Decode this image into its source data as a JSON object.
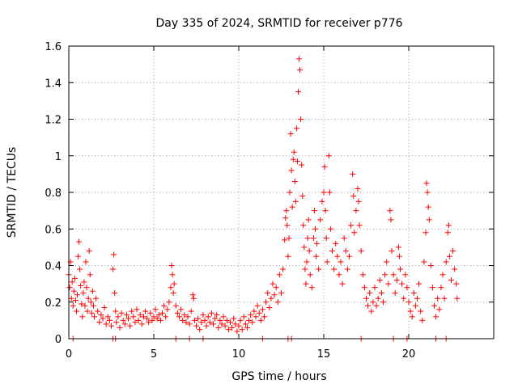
{
  "chart_data": {
    "type": "scatter",
    "title": "Day 335 of 2024, SRMTID for receiver p776",
    "xlabel": "GPS time / hours",
    "ylabel": "SRMTID / TECUs",
    "xlim": [
      0,
      25
    ],
    "ylim": [
      0,
      1.6
    ],
    "x_ticks": [
      0,
      5,
      10,
      15,
      20
    ],
    "x_tick_labels": [
      "0",
      "5",
      "10",
      "15",
      "20"
    ],
    "y_ticks": [
      0,
      0.2,
      0.4,
      0.6,
      0.8,
      1.0,
      1.2,
      1.4,
      1.6
    ],
    "y_tick_labels": [
      "0",
      "0.2",
      "0.4",
      "0.6",
      "0.8",
      "1",
      "1.2",
      "1.4",
      "1.6"
    ],
    "grid": true,
    "marker": "+",
    "color": "#ff0000",
    "series": [
      {
        "name": "SRMTID",
        "points": [
          [
            0.0,
            0.35
          ],
          [
            0.05,
            0.28
          ],
          [
            0.1,
            0.42
          ],
          [
            0.15,
            0.22
          ],
          [
            0.2,
            0.31
          ],
          [
            0.25,
            0.18
          ],
          [
            0.3,
            0.26
          ],
          [
            0.35,
            0.33
          ],
          [
            0.4,
            0.21
          ],
          [
            0.45,
            0.15
          ],
          [
            0.5,
            0.24
          ],
          [
            0.55,
            0.45
          ],
          [
            0.6,
            0.53
          ],
          [
            0.65,
            0.38
          ],
          [
            0.7,
            0.29
          ],
          [
            0.75,
            0.19
          ],
          [
            0.8,
            0.12
          ],
          [
            0.85,
            0.25
          ],
          [
            0.9,
            0.31
          ],
          [
            0.95,
            0.18
          ],
          [
            1.0,
            0.42
          ],
          [
            1.05,
            0.28
          ],
          [
            1.1,
            0.15
          ],
          [
            1.15,
            0.22
          ],
          [
            1.2,
            0.48
          ],
          [
            1.25,
            0.35
          ],
          [
            1.3,
            0.2
          ],
          [
            1.35,
            0.14
          ],
          [
            1.4,
            0.26
          ],
          [
            1.45,
            0.18
          ],
          [
            1.5,
            0.12
          ],
          [
            1.6,
            0.22
          ],
          [
            1.7,
            0.15
          ],
          [
            1.8,
            0.09
          ],
          [
            1.9,
            0.13
          ],
          [
            2.0,
            0.11
          ],
          [
            2.1,
            0.17
          ],
          [
            2.2,
            0.08
          ],
          [
            2.3,
            0.12
          ],
          [
            2.4,
            0.1
          ],
          [
            2.5,
            0.07
          ],
          [
            2.6,
            0.38
          ],
          [
            2.65,
            0.46
          ],
          [
            2.7,
            0.25
          ],
          [
            2.75,
            0.15
          ],
          [
            2.8,
            0.09
          ],
          [
            2.9,
            0.12
          ],
          [
            3.0,
            0.06
          ],
          [
            3.1,
            0.14
          ],
          [
            3.2,
            0.1
          ],
          [
            3.3,
            0.08
          ],
          [
            3.4,
            0.13
          ],
          [
            3.5,
            0.11
          ],
          [
            3.6,
            0.07
          ],
          [
            3.7,
            0.15
          ],
          [
            3.8,
            0.12
          ],
          [
            3.9,
            0.09
          ],
          [
            4.0,
            0.16
          ],
          [
            4.1,
            0.1
          ],
          [
            4.2,
            0.13
          ],
          [
            4.3,
            0.08
          ],
          [
            4.4,
            0.12
          ],
          [
            4.5,
            0.15
          ],
          [
            4.6,
            0.11
          ],
          [
            4.7,
            0.09
          ],
          [
            4.8,
            0.14
          ],
          [
            4.9,
            0.1
          ],
          [
            5.0,
            0.12
          ],
          [
            5.1,
            0.16
          ],
          [
            5.2,
            0.11
          ],
          [
            5.3,
            0.13
          ],
          [
            5.4,
            0.1
          ],
          [
            5.5,
            0.14
          ],
          [
            5.6,
            0.18
          ],
          [
            5.7,
            0.12
          ],
          [
            5.8,
            0.16
          ],
          [
            5.9,
            0.2
          ],
          [
            6.0,
            0.28
          ],
          [
            6.05,
            0.4
          ],
          [
            6.1,
            0.35
          ],
          [
            6.15,
            0.25
          ],
          [
            6.2,
            0.3
          ],
          [
            6.3,
            0.18
          ],
          [
            6.4,
            0.14
          ],
          [
            6.5,
            0.12
          ],
          [
            6.6,
            0.16
          ],
          [
            6.7,
            0.1
          ],
          [
            6.8,
            0.13
          ],
          [
            6.9,
            0.09
          ],
          [
            7.0,
            0.12
          ],
          [
            7.1,
            0.08
          ],
          [
            7.2,
            0.15
          ],
          [
            7.3,
            0.24
          ],
          [
            7.35,
            0.22
          ],
          [
            7.4,
            0.1
          ],
          [
            7.5,
            0.07
          ],
          [
            7.6,
            0.11
          ],
          [
            7.7,
            0.05
          ],
          [
            7.8,
            0.09
          ],
          [
            7.9,
            0.13
          ],
          [
            8.0,
            0.1
          ],
          [
            8.1,
            0.07
          ],
          [
            8.2,
            0.12
          ],
          [
            8.3,
            0.09
          ],
          [
            8.4,
            0.14
          ],
          [
            8.5,
            0.08
          ],
          [
            8.6,
            0.11
          ],
          [
            8.7,
            0.13
          ],
          [
            8.8,
            0.06
          ],
          [
            8.9,
            0.1
          ],
          [
            9.0,
            0.08
          ],
          [
            9.1,
            0.12
          ],
          [
            9.2,
            0.07
          ],
          [
            9.3,
            0.1
          ],
          [
            9.4,
            0.05
          ],
          [
            9.5,
            0.09
          ],
          [
            9.6,
            0.06
          ],
          [
            9.7,
            0.11
          ],
          [
            9.8,
            0.08
          ],
          [
            9.9,
            0.04
          ],
          [
            10.0,
            0.07
          ],
          [
            10.1,
            0.1
          ],
          [
            10.2,
            0.05
          ],
          [
            10.3,
            0.12
          ],
          [
            10.4,
            0.08
          ],
          [
            10.5,
            0.06
          ],
          [
            10.6,
            0.1
          ],
          [
            10.7,
            0.13
          ],
          [
            10.8,
            0.09
          ],
          [
            10.9,
            0.15
          ],
          [
            11.0,
            0.12
          ],
          [
            11.1,
            0.18
          ],
          [
            11.2,
            0.14
          ],
          [
            11.3,
            0.1
          ],
          [
            11.4,
            0.16
          ],
          [
            11.5,
            0.12
          ],
          [
            11.6,
            0.2
          ],
          [
            11.7,
            0.25
          ],
          [
            11.8,
            0.17
          ],
          [
            11.9,
            0.22
          ],
          [
            12.0,
            0.3
          ],
          [
            12.1,
            0.24
          ],
          [
            12.2,
            0.28
          ],
          [
            12.3,
            0.2
          ],
          [
            12.4,
            0.35
          ],
          [
            12.5,
            0.25
          ],
          [
            12.6,
            0.38
          ],
          [
            12.7,
            0.54
          ],
          [
            12.75,
            0.66
          ],
          [
            12.8,
            0.7
          ],
          [
            12.85,
            0.62
          ],
          [
            12.9,
            0.45
          ],
          [
            12.95,
            0.55
          ],
          [
            13.0,
            0.8
          ],
          [
            13.05,
            1.12
          ],
          [
            13.1,
            0.92
          ],
          [
            13.15,
            0.72
          ],
          [
            13.2,
            0.98
          ],
          [
            13.25,
            1.02
          ],
          [
            13.3,
            0.86
          ],
          [
            13.35,
            0.75
          ],
          [
            13.4,
            1.15
          ],
          [
            13.45,
            0.97
          ],
          [
            13.5,
            1.35
          ],
          [
            13.55,
            1.53
          ],
          [
            13.6,
            1.47
          ],
          [
            13.65,
            1.2
          ],
          [
            13.7,
            0.95
          ],
          [
            13.75,
            0.78
          ],
          [
            13.8,
            0.62
          ],
          [
            13.85,
            0.5
          ],
          [
            13.9,
            0.38
          ],
          [
            13.95,
            0.3
          ],
          [
            14.0,
            0.42
          ],
          [
            14.05,
            0.55
          ],
          [
            14.1,
            0.65
          ],
          [
            14.15,
            0.48
          ],
          [
            14.2,
            0.35
          ],
          [
            14.3,
            0.28
          ],
          [
            14.4,
            0.55
          ],
          [
            14.45,
            0.7
          ],
          [
            14.5,
            0.6
          ],
          [
            14.55,
            0.45
          ],
          [
            14.6,
            0.52
          ],
          [
            14.7,
            0.38
          ],
          [
            14.8,
            0.65
          ],
          [
            14.9,
            0.75
          ],
          [
            15.0,
            0.8
          ],
          [
            15.05,
            0.94
          ],
          [
            15.1,
            0.7
          ],
          [
            15.15,
            0.55
          ],
          [
            15.2,
            0.42
          ],
          [
            15.3,
            1.0
          ],
          [
            15.35,
            0.8
          ],
          [
            15.4,
            0.6
          ],
          [
            15.5,
            0.48
          ],
          [
            15.6,
            0.38
          ],
          [
            15.7,
            0.52
          ],
          [
            15.8,
            0.45
          ],
          [
            15.9,
            0.35
          ],
          [
            16.0,
            0.42
          ],
          [
            16.1,
            0.3
          ],
          [
            16.2,
            0.55
          ],
          [
            16.3,
            0.48
          ],
          [
            16.4,
            0.38
          ],
          [
            16.5,
            0.45
          ],
          [
            16.6,
            0.62
          ],
          [
            16.7,
            0.9
          ],
          [
            16.75,
            0.78
          ],
          [
            16.8,
            0.58
          ],
          [
            16.9,
            0.7
          ],
          [
            17.0,
            0.82
          ],
          [
            17.05,
            0.75
          ],
          [
            17.1,
            0.62
          ],
          [
            17.2,
            0.48
          ],
          [
            17.3,
            0.35
          ],
          [
            17.4,
            0.28
          ],
          [
            17.5,
            0.22
          ],
          [
            17.6,
            0.18
          ],
          [
            17.7,
            0.25
          ],
          [
            17.8,
            0.15
          ],
          [
            17.9,
            0.2
          ],
          [
            18.0,
            0.28
          ],
          [
            18.1,
            0.18
          ],
          [
            18.2,
            0.22
          ],
          [
            18.3,
            0.32
          ],
          [
            18.4,
            0.25
          ],
          [
            18.5,
            0.2
          ],
          [
            18.6,
            0.35
          ],
          [
            18.7,
            0.42
          ],
          [
            18.8,
            0.3
          ],
          [
            18.9,
            0.7
          ],
          [
            18.95,
            0.65
          ],
          [
            19.0,
            0.48
          ],
          [
            19.1,
            0.35
          ],
          [
            19.2,
            0.25
          ],
          [
            19.3,
            0.32
          ],
          [
            19.4,
            0.5
          ],
          [
            19.45,
            0.45
          ],
          [
            19.5,
            0.38
          ],
          [
            19.6,
            0.3
          ],
          [
            19.7,
            0.22
          ],
          [
            19.8,
            0.35
          ],
          [
            19.9,
            0.28
          ],
          [
            20.0,
            0.2
          ],
          [
            20.1,
            0.15
          ],
          [
            20.2,
            0.12
          ],
          [
            20.3,
            0.25
          ],
          [
            20.4,
            0.18
          ],
          [
            20.5,
            0.22
          ],
          [
            20.6,
            0.3
          ],
          [
            20.7,
            0.15
          ],
          [
            20.8,
            0.1
          ],
          [
            20.9,
            0.42
          ],
          [
            21.0,
            0.58
          ],
          [
            21.05,
            0.85
          ],
          [
            21.1,
            0.8
          ],
          [
            21.15,
            0.72
          ],
          [
            21.2,
            0.65
          ],
          [
            21.3,
            0.4
          ],
          [
            21.4,
            0.28
          ],
          [
            21.5,
            0.18
          ],
          [
            21.6,
            0.12
          ],
          [
            21.7,
            0.22
          ],
          [
            21.8,
            0.16
          ],
          [
            21.9,
            0.28
          ],
          [
            22.0,
            0.35
          ],
          [
            22.1,
            0.22
          ],
          [
            22.2,
            0.42
          ],
          [
            22.3,
            0.58
          ],
          [
            22.35,
            0.62
          ],
          [
            22.4,
            0.45
          ],
          [
            22.5,
            0.32
          ],
          [
            22.6,
            0.48
          ],
          [
            22.7,
            0.38
          ],
          [
            22.8,
            0.3
          ],
          [
            22.85,
            0.22
          ]
        ]
      }
    ],
    "zero_markers_x": [
      0.25,
      2.6,
      2.75,
      6.3,
      7.1,
      7.9,
      11.4,
      12.9,
      13.1,
      17.2,
      19.1,
      19.9,
      21.6,
      22.2
    ]
  }
}
